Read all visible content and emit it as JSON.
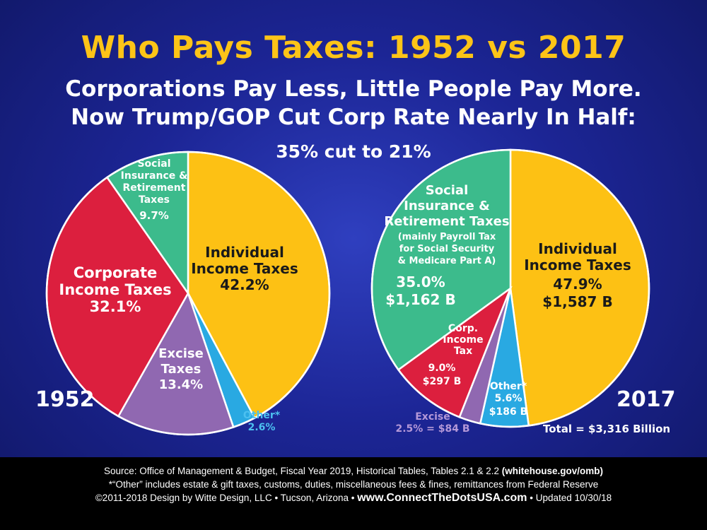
{
  "title": "Who Pays Taxes: 1952 vs 2017",
  "subtitle_line1": "Corporations Pay Less, Little People Pay More.",
  "subtitle_line2": "Now Trump/GOP Cut Corp Rate Nearly In Half:",
  "cut_note": "35% cut to 21%",
  "colors": {
    "individual": "#fdc114",
    "corporate": "#dc1f3e",
    "social": "#3cbb8c",
    "excise": "#9068b1",
    "other": "#29a9e2",
    "label_dark": "#1a1a1a",
    "label_light": "#ffffff",
    "note_purple": "#b498d8",
    "note_blue": "#4cc0f0"
  },
  "chart_data": [
    {
      "type": "pie",
      "year_label": "1952",
      "slices": [
        {
          "name": "Individual Income Taxes",
          "value": 42.2,
          "color_key": "individual",
          "label_lines": [
            "Individual",
            "Income Taxes"
          ],
          "value_lines": [
            "42.2%"
          ]
        },
        {
          "name": "Other*",
          "value": 2.6,
          "color_key": "other",
          "label_lines": [
            "Other*"
          ],
          "value_lines": [
            "2.6%"
          ]
        },
        {
          "name": "Excise Taxes",
          "value": 13.4,
          "color_key": "excise",
          "label_lines": [
            "Excise",
            "Taxes"
          ],
          "value_lines": [
            "13.4%"
          ]
        },
        {
          "name": "Corporate Income Taxes",
          "value": 32.1,
          "color_key": "corporate",
          "label_lines": [
            "Corporate",
            "Income Taxes"
          ],
          "value_lines": [
            "32.1%"
          ]
        },
        {
          "name": "Social Insurance & Retirement Taxes",
          "value": 9.7,
          "color_key": "social",
          "label_lines": [
            "Social",
            "Insurance &",
            "Retirement",
            "Taxes"
          ],
          "value_lines": [
            "9.7%"
          ]
        }
      ]
    },
    {
      "type": "pie",
      "year_label": "2017",
      "total_label": "Total = $3,316 Billion",
      "slices": [
        {
          "name": "Individual Income Taxes",
          "value": 47.9,
          "amount": "$1,587 B",
          "color_key": "individual",
          "label_lines": [
            "Individual",
            "Income Taxes"
          ],
          "value_lines": [
            "47.9%",
            "$1,587 B"
          ]
        },
        {
          "name": "Other*",
          "value": 5.6,
          "amount": "$186 B",
          "color_key": "other",
          "label_lines": [
            "Other*"
          ],
          "value_lines": [
            "5.6%",
            "$186 B"
          ]
        },
        {
          "name": "Excise",
          "value": 2.5,
          "amount": "$84 B",
          "color_key": "excise",
          "label_lines": [
            "Excise"
          ],
          "value_lines": [
            "2.5% = $84 B"
          ]
        },
        {
          "name": "Corp. Income Tax",
          "value": 9.0,
          "amount": "$297 B",
          "color_key": "corporate",
          "label_lines": [
            "Corp.",
            "Income",
            "Tax"
          ],
          "value_lines": [
            "9.0%",
            "$297 B"
          ]
        },
        {
          "name": "Social Insurance & Retirement Taxes",
          "value": 35.0,
          "amount": "$1,162 B",
          "color_key": "social",
          "label_lines": [
            "Social",
            "Insurance &",
            "Retirement Taxes"
          ],
          "note_lines": [
            "(mainly Payroll Tax",
            "for Social Security",
            "& Medicare Part A)"
          ],
          "value_lines": [
            "35.0%",
            "$1,162 B"
          ]
        }
      ]
    }
  ],
  "footer": {
    "source": "Source: Office of Management & Budget, Fiscal Year 2019, Historical Tables, Tables 2.1 & 2.2",
    "source_link": "(whitehouse.gov/omb)",
    "other_note": "*“Other” includes estate & gift taxes, customs, duties, miscellaneous fees & fines, remittances from Federal Reserve",
    "credit": "©2011-2018 Design by Witte Design, LLC • Tucson, Arizona •",
    "website": "www.ConnectTheDotsUSA.com",
    "updated": "• Updated 10/30/18"
  }
}
